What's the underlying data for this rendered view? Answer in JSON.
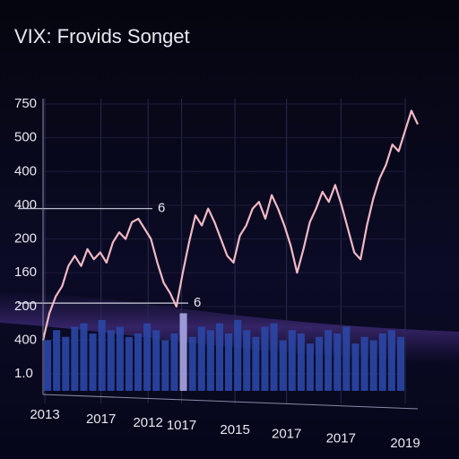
{
  "chart_data": {
    "type": "line",
    "title": "VIX: Frovids Songet",
    "color": "#f2b9c4",
    "values": [
      1.0,
      1.8,
      2.3,
      2.6,
      3.2,
      3.5,
      3.2,
      3.7,
      3.4,
      3.6,
      3.3,
      3.9,
      4.2,
      4.0,
      4.5,
      4.6,
      4.3,
      4.0,
      3.3,
      2.7,
      2.4,
      2.0,
      3.0,
      3.9,
      4.7,
      4.4,
      4.9,
      4.5,
      4.0,
      3.5,
      3.3,
      4.1,
      4.4,
      4.9,
      5.1,
      4.6,
      5.3,
      4.9,
      4.4,
      3.8,
      3.0,
      3.7,
      4.5,
      4.9,
      5.4,
      5.1,
      5.6,
      5.0,
      4.3,
      3.6,
      3.4,
      4.4,
      5.2,
      5.8,
      6.2,
      6.8,
      6.6,
      7.2,
      7.8,
      7.4
    ],
    "bar_color": "#2b47a6",
    "bar_highlight": {
      "index": 15,
      "color": "#a9a6e6"
    },
    "bar_values": [
      1.0,
      1.3,
      1.1,
      1.4,
      1.5,
      1.2,
      1.6,
      1.3,
      1.4,
      1.1,
      1.2,
      1.5,
      1.3,
      1.0,
      1.2,
      1.8,
      1.1,
      1.4,
      1.3,
      1.5,
      1.2,
      1.6,
      1.3,
      1.1,
      1.4,
      1.5,
      1.0,
      1.3,
      1.2,
      0.9,
      1.1,
      1.3,
      1.2,
      1.4,
      0.9,
      1.1,
      1.0,
      1.2,
      1.3,
      1.1
    ],
    "ylim": [
      -0.5,
      8
    ],
    "yticks": [
      {
        "value": 8,
        "label": "750"
      },
      {
        "value": 7,
        "label": "500"
      },
      {
        "value": 6,
        "label": "400"
      },
      {
        "value": 5,
        "label": "400"
      },
      {
        "value": 4,
        "label": "200"
      },
      {
        "value": 3,
        "label": "160"
      },
      {
        "value": 2,
        "label": "200"
      },
      {
        "value": 1,
        "label": "400"
      },
      {
        "value": 0,
        "label": "1.0"
      }
    ],
    "xlim": [
      0,
      40
    ],
    "xticks": [
      {
        "value": 0.2,
        "label": "2013"
      },
      {
        "value": 6.4,
        "label": "2017"
      },
      {
        "value": 11.6,
        "label": "2012"
      },
      {
        "value": 15.3,
        "label": "1017"
      },
      {
        "value": 21.2,
        "label": "2015"
      },
      {
        "value": 26.9,
        "label": "2017"
      },
      {
        "value": 32.9,
        "label": "2017"
      },
      {
        "value": 40,
        "label": "2019"
      }
    ],
    "annotations": [
      {
        "value": 4.9,
        "label": "6"
      },
      {
        "value": 2.1,
        "label": "6"
      }
    ]
  }
}
